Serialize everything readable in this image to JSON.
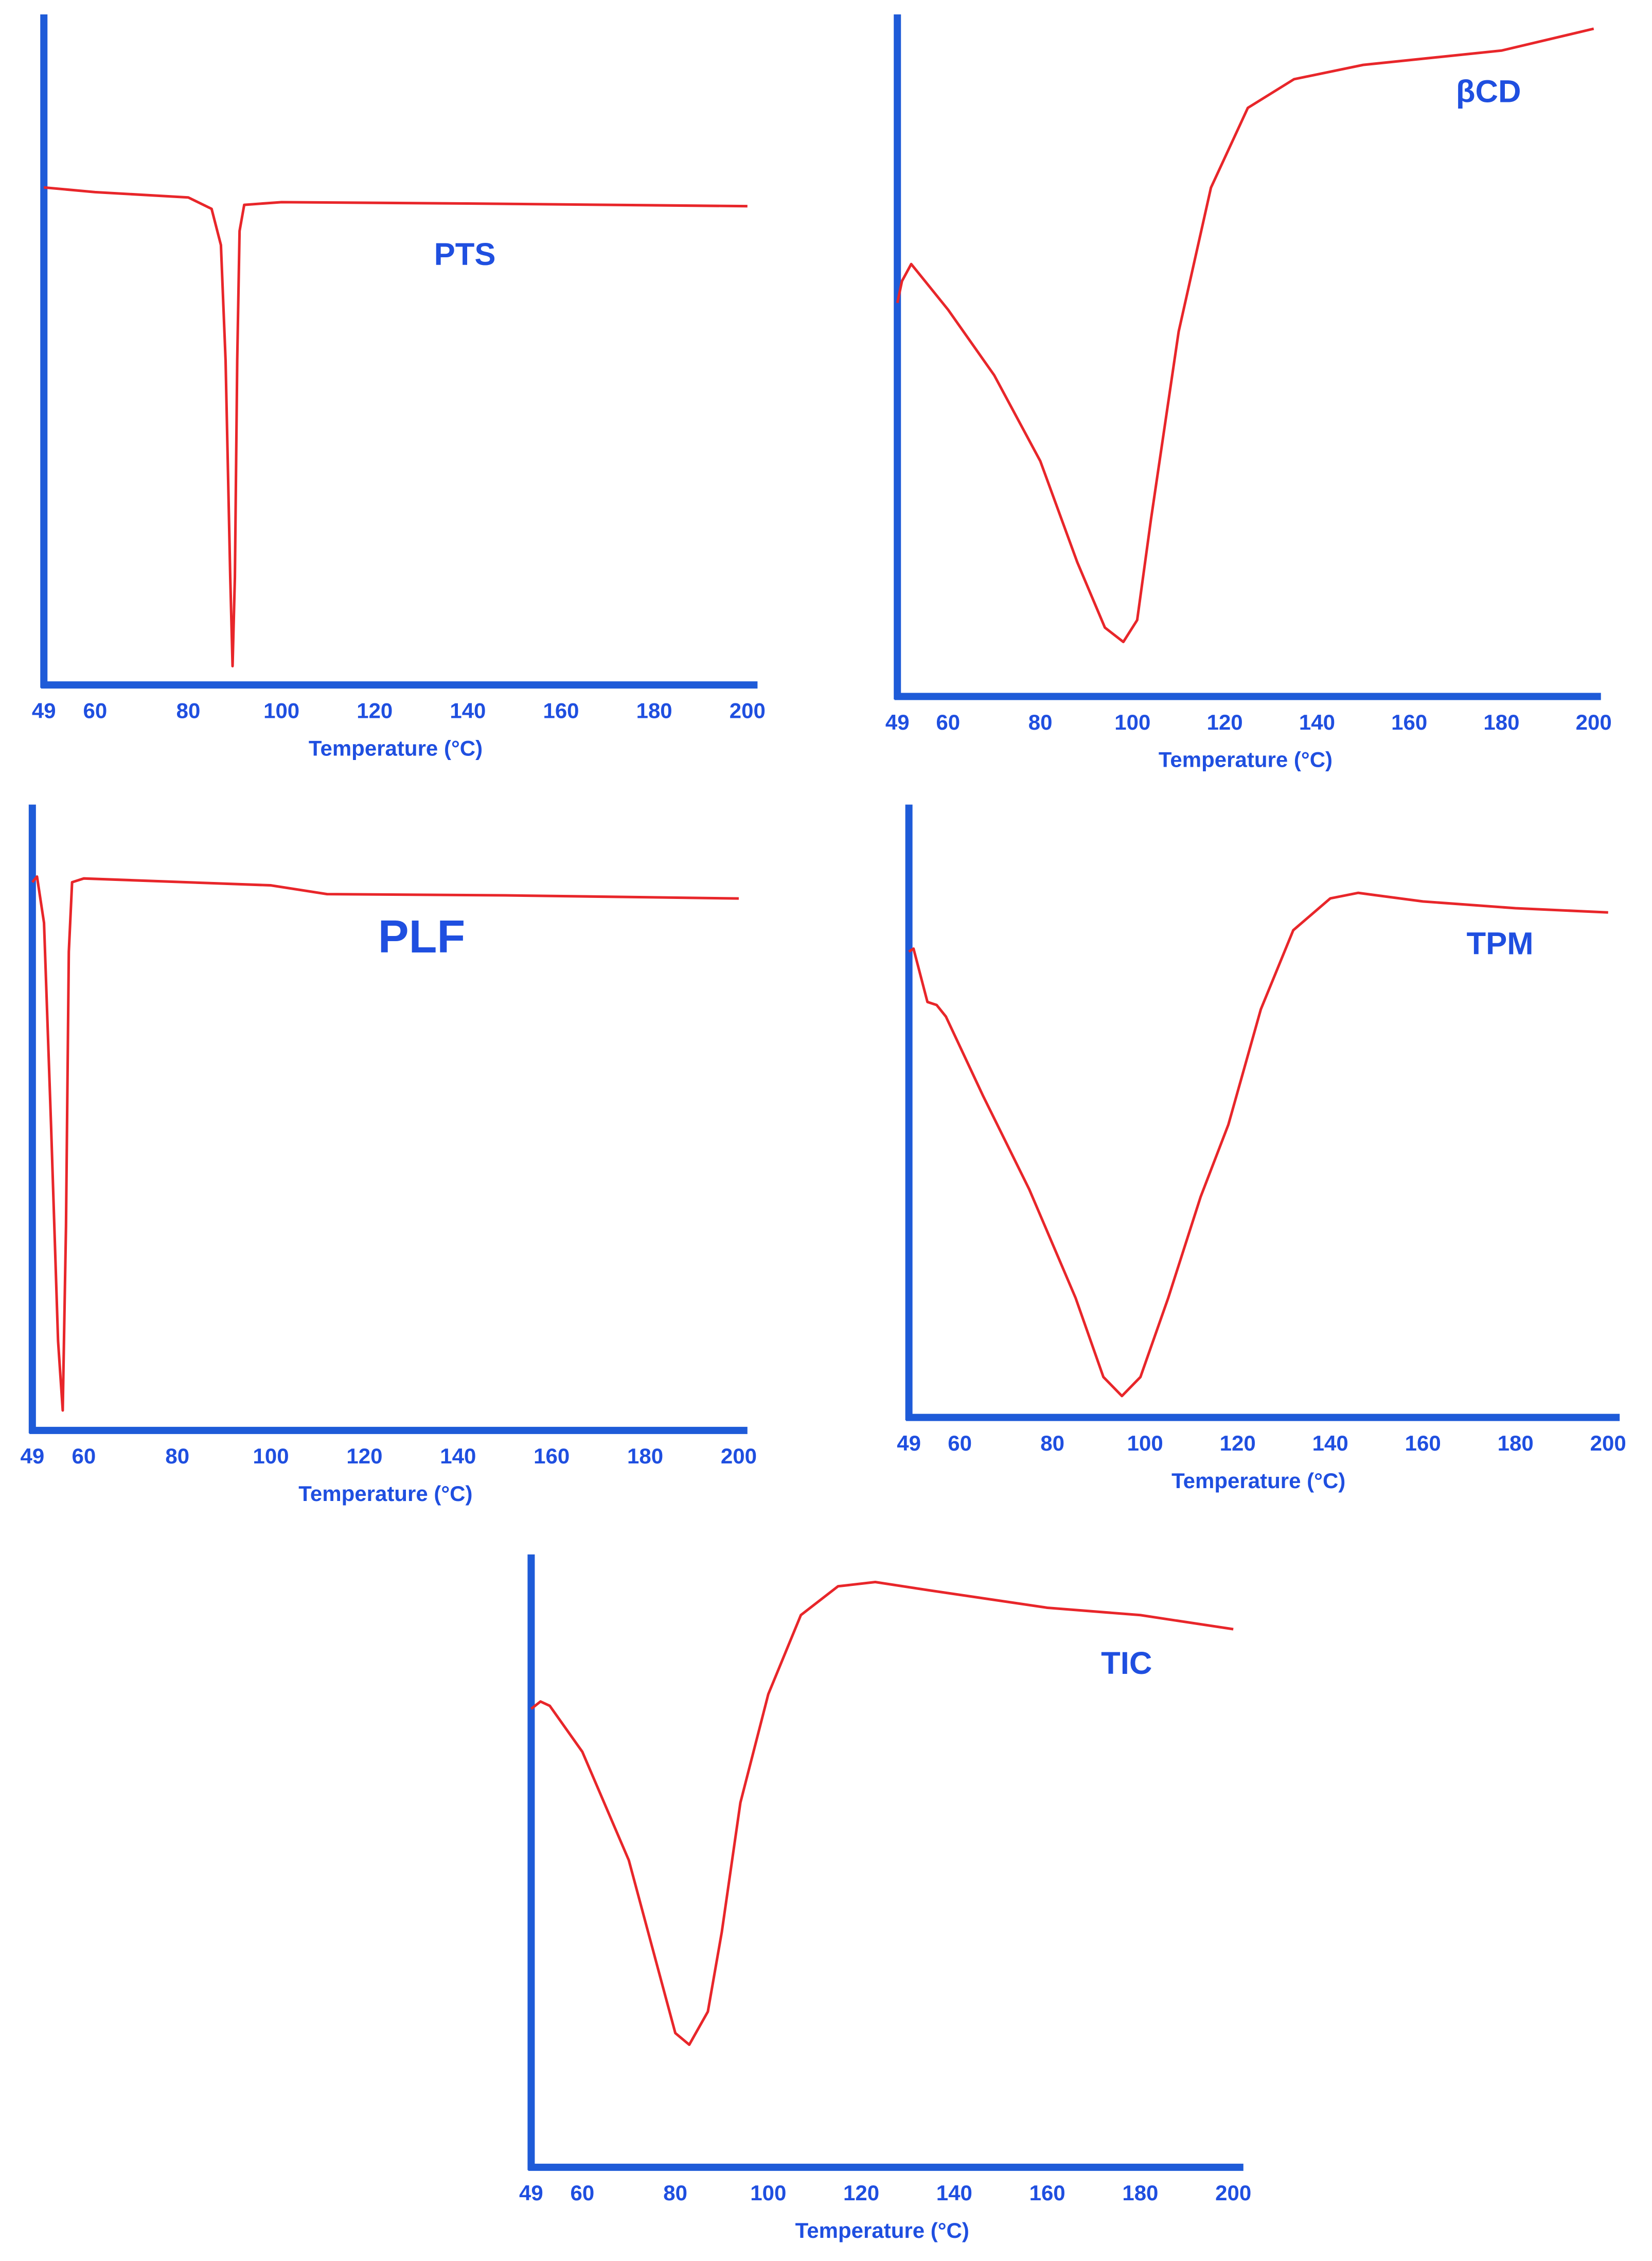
{
  "chart_data": [
    {
      "type": "line",
      "title": "PTS",
      "x_label": "Temperature (°C)",
      "color": "#e8262a",
      "x": [
        49,
        60,
        80,
        85,
        87,
        88,
        89,
        89.5,
        90,
        90.5,
        91,
        92,
        100,
        140,
        200
      ],
      "values": [
        74.2,
        73.5,
        72.7,
        71.0,
        65.6,
        48.4,
        16.1,
        2.8,
        16.1,
        48.4,
        67.7,
        71.6,
        72.0,
        71.8,
        71.4
      ],
      "xlim": [
        49,
        200
      ],
      "xticks": [
        49,
        60,
        80,
        100,
        120,
        140,
        160,
        180,
        200
      ],
      "ylim": [
        0,
        100
      ]
    },
    {
      "type": "line",
      "title": "βCD",
      "x_label": "Temperature (°C)",
      "color": "#e8262a",
      "x": [
        49,
        50,
        52,
        55,
        60,
        70,
        80,
        88,
        94,
        98,
        101,
        104,
        110,
        117,
        125,
        135,
        150,
        180,
        200
      ],
      "values": [
        57.7,
        60.9,
        63.4,
        60.9,
        56.7,
        47.1,
        34.5,
        19.7,
        10.1,
        8.0,
        11.2,
        26.0,
        53.5,
        74.6,
        86.3,
        90.5,
        92.6,
        94.7,
        97.9
      ],
      "xlim": [
        49,
        200
      ],
      "xticks": [
        49,
        60,
        80,
        100,
        120,
        140,
        160,
        180,
        200
      ],
      "ylim": [
        0,
        100
      ]
    },
    {
      "type": "line",
      "title": "PLF",
      "x_label": "Temperature (°C)",
      "color": "#e8262a",
      "x": [
        49,
        50,
        51.5,
        53,
        54.5,
        55.5,
        56.2,
        56.8,
        57.5,
        60,
        100,
        112,
        150,
        200
      ],
      "values": [
        87.6,
        88.5,
        81.1,
        48.8,
        14.3,
        3.2,
        32.7,
        76.5,
        87.6,
        88.2,
        87.1,
        85.7,
        85.5,
        85.0
      ],
      "xlim": [
        49,
        200
      ],
      "xticks": [
        49,
        60,
        80,
        100,
        120,
        140,
        160,
        180,
        200
      ],
      "ylim": [
        0,
        100
      ]
    },
    {
      "type": "line",
      "title": "TPM",
      "x_label": "Temperature (°C)",
      "color": "#e8262a",
      "x": [
        49,
        50,
        51,
        53,
        55,
        57,
        65,
        75,
        85,
        91,
        95,
        99,
        105,
        112,
        118,
        125,
        132,
        140,
        146,
        160,
        180,
        200
      ],
      "values": [
        76.0,
        76.5,
        73.6,
        67.8,
        67.3,
        65.4,
        52.5,
        37.2,
        19.5,
        6.6,
        3.5,
        6.6,
        19.5,
        36.0,
        47.8,
        66.6,
        79.5,
        84.7,
        85.6,
        84.2,
        83.1,
        82.4
      ],
      "xlim": [
        49,
        200
      ],
      "xticks": [
        49,
        60,
        80,
        100,
        120,
        140,
        160,
        180,
        200
      ],
      "ylim": [
        0,
        100
      ]
    },
    {
      "type": "line",
      "title": "TIC",
      "x_label": "Temperature (°C)",
      "color": "#e8262a",
      "x": [
        49,
        51,
        53,
        60,
        70,
        75,
        80,
        83,
        87,
        90,
        94,
        100,
        107,
        115,
        123,
        135,
        160,
        180,
        200
      ],
      "values": [
        74.8,
        76.0,
        75.3,
        67.8,
        50.1,
        36.0,
        21.9,
        20.0,
        25.4,
        38.4,
        59.5,
        77.2,
        90.1,
        94.8,
        95.5,
        94.1,
        91.3,
        90.1,
        87.8
      ],
      "xlim": [
        49,
        200
      ],
      "xticks": [
        49,
        60,
        80,
        100,
        120,
        140,
        160,
        180,
        200
      ],
      "ylim": [
        0,
        100
      ]
    }
  ]
}
